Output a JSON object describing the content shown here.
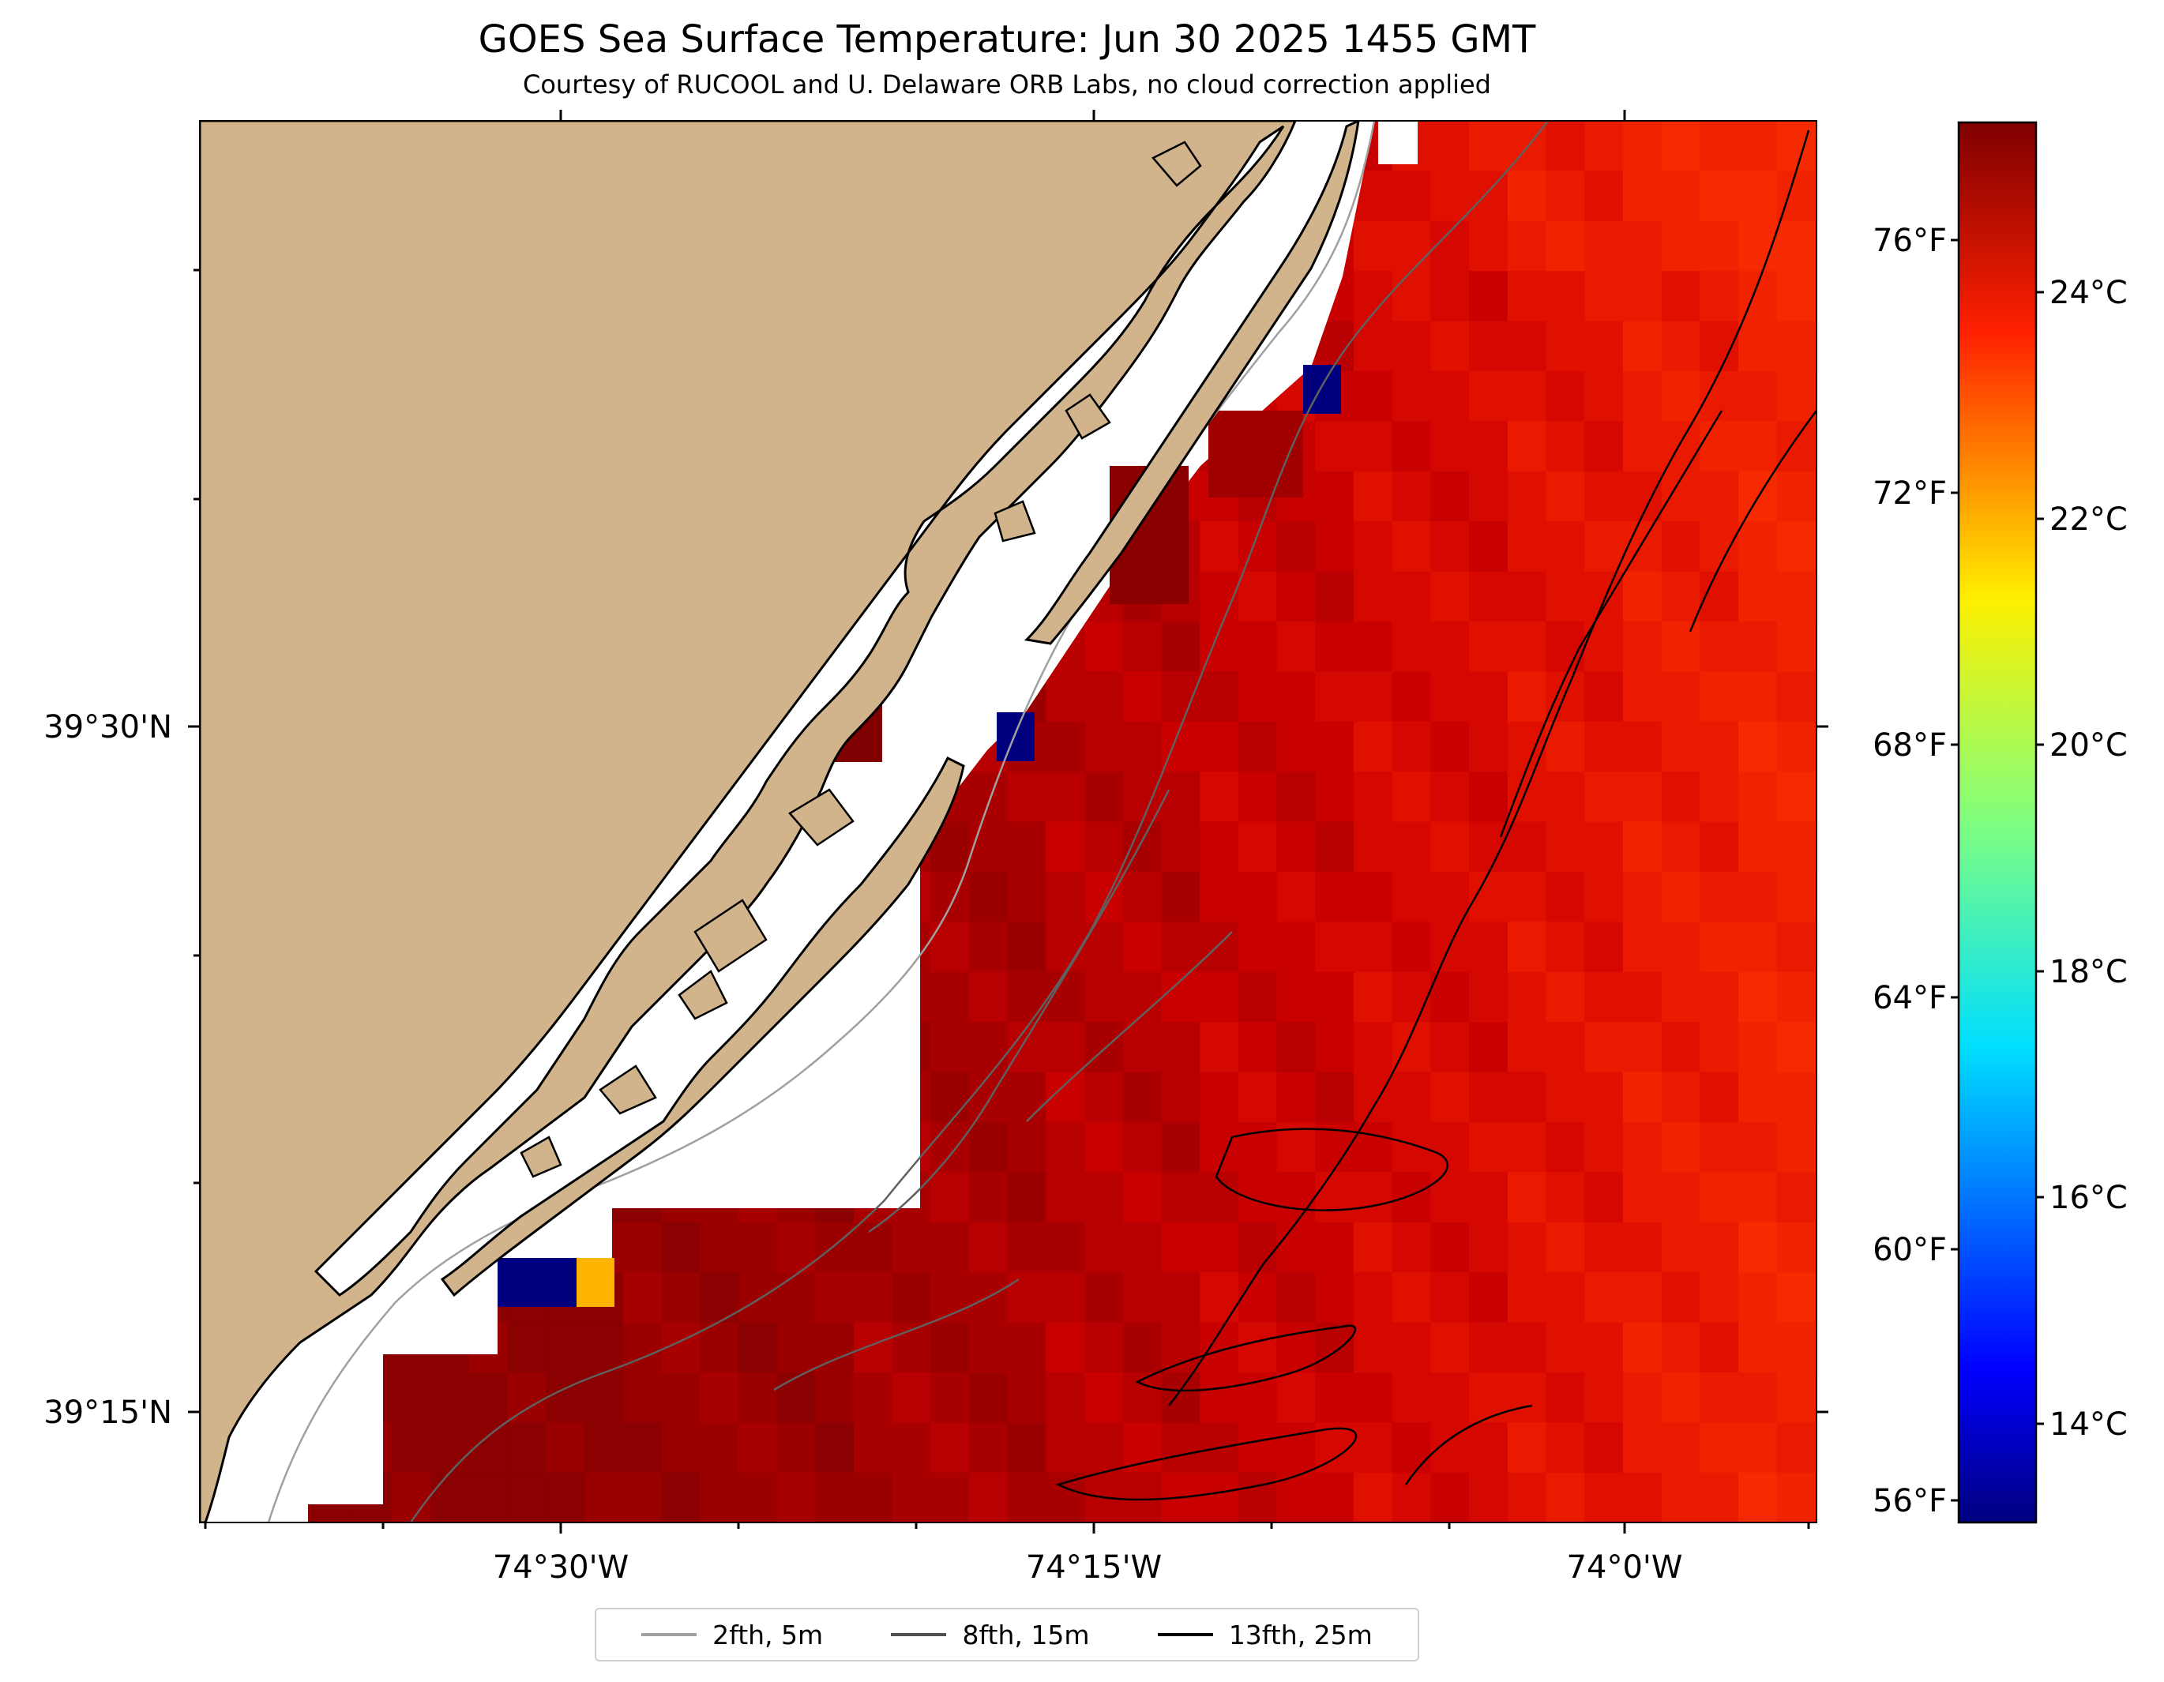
{
  "title": "GOES Sea Surface Temperature: Jun 30 2025 1455 GMT",
  "subtitle": "Courtesy of RUCOOL and U. Delaware ORB Labs, no cloud correction applied",
  "map": {
    "longitude_ticks": [
      "74°30'W",
      "74°15'W",
      "74°0'W"
    ],
    "latitude_ticks": [
      "39°30'N",
      "39°15'N"
    ],
    "land_color": "#d2b48c",
    "coastline_color": "#000000",
    "colormap": "jet"
  },
  "colorbar": {
    "fahrenheit_ticks": [
      "76°F",
      "72°F",
      "68°F",
      "64°F",
      "60°F",
      "56°F"
    ],
    "celsius_ticks": [
      "24°C",
      "22°C",
      "20°C",
      "18°C",
      "16°C",
      "14°C"
    ],
    "range_c": [
      12.8,
      25.0
    ]
  },
  "legend": {
    "items": [
      {
        "label": "2fth, 5m",
        "color": "#a0a0a0"
      },
      {
        "label": "8fth, 15m",
        "color": "#505050"
      },
      {
        "label": "13fth, 25m",
        "color": "#000000"
      }
    ]
  }
}
